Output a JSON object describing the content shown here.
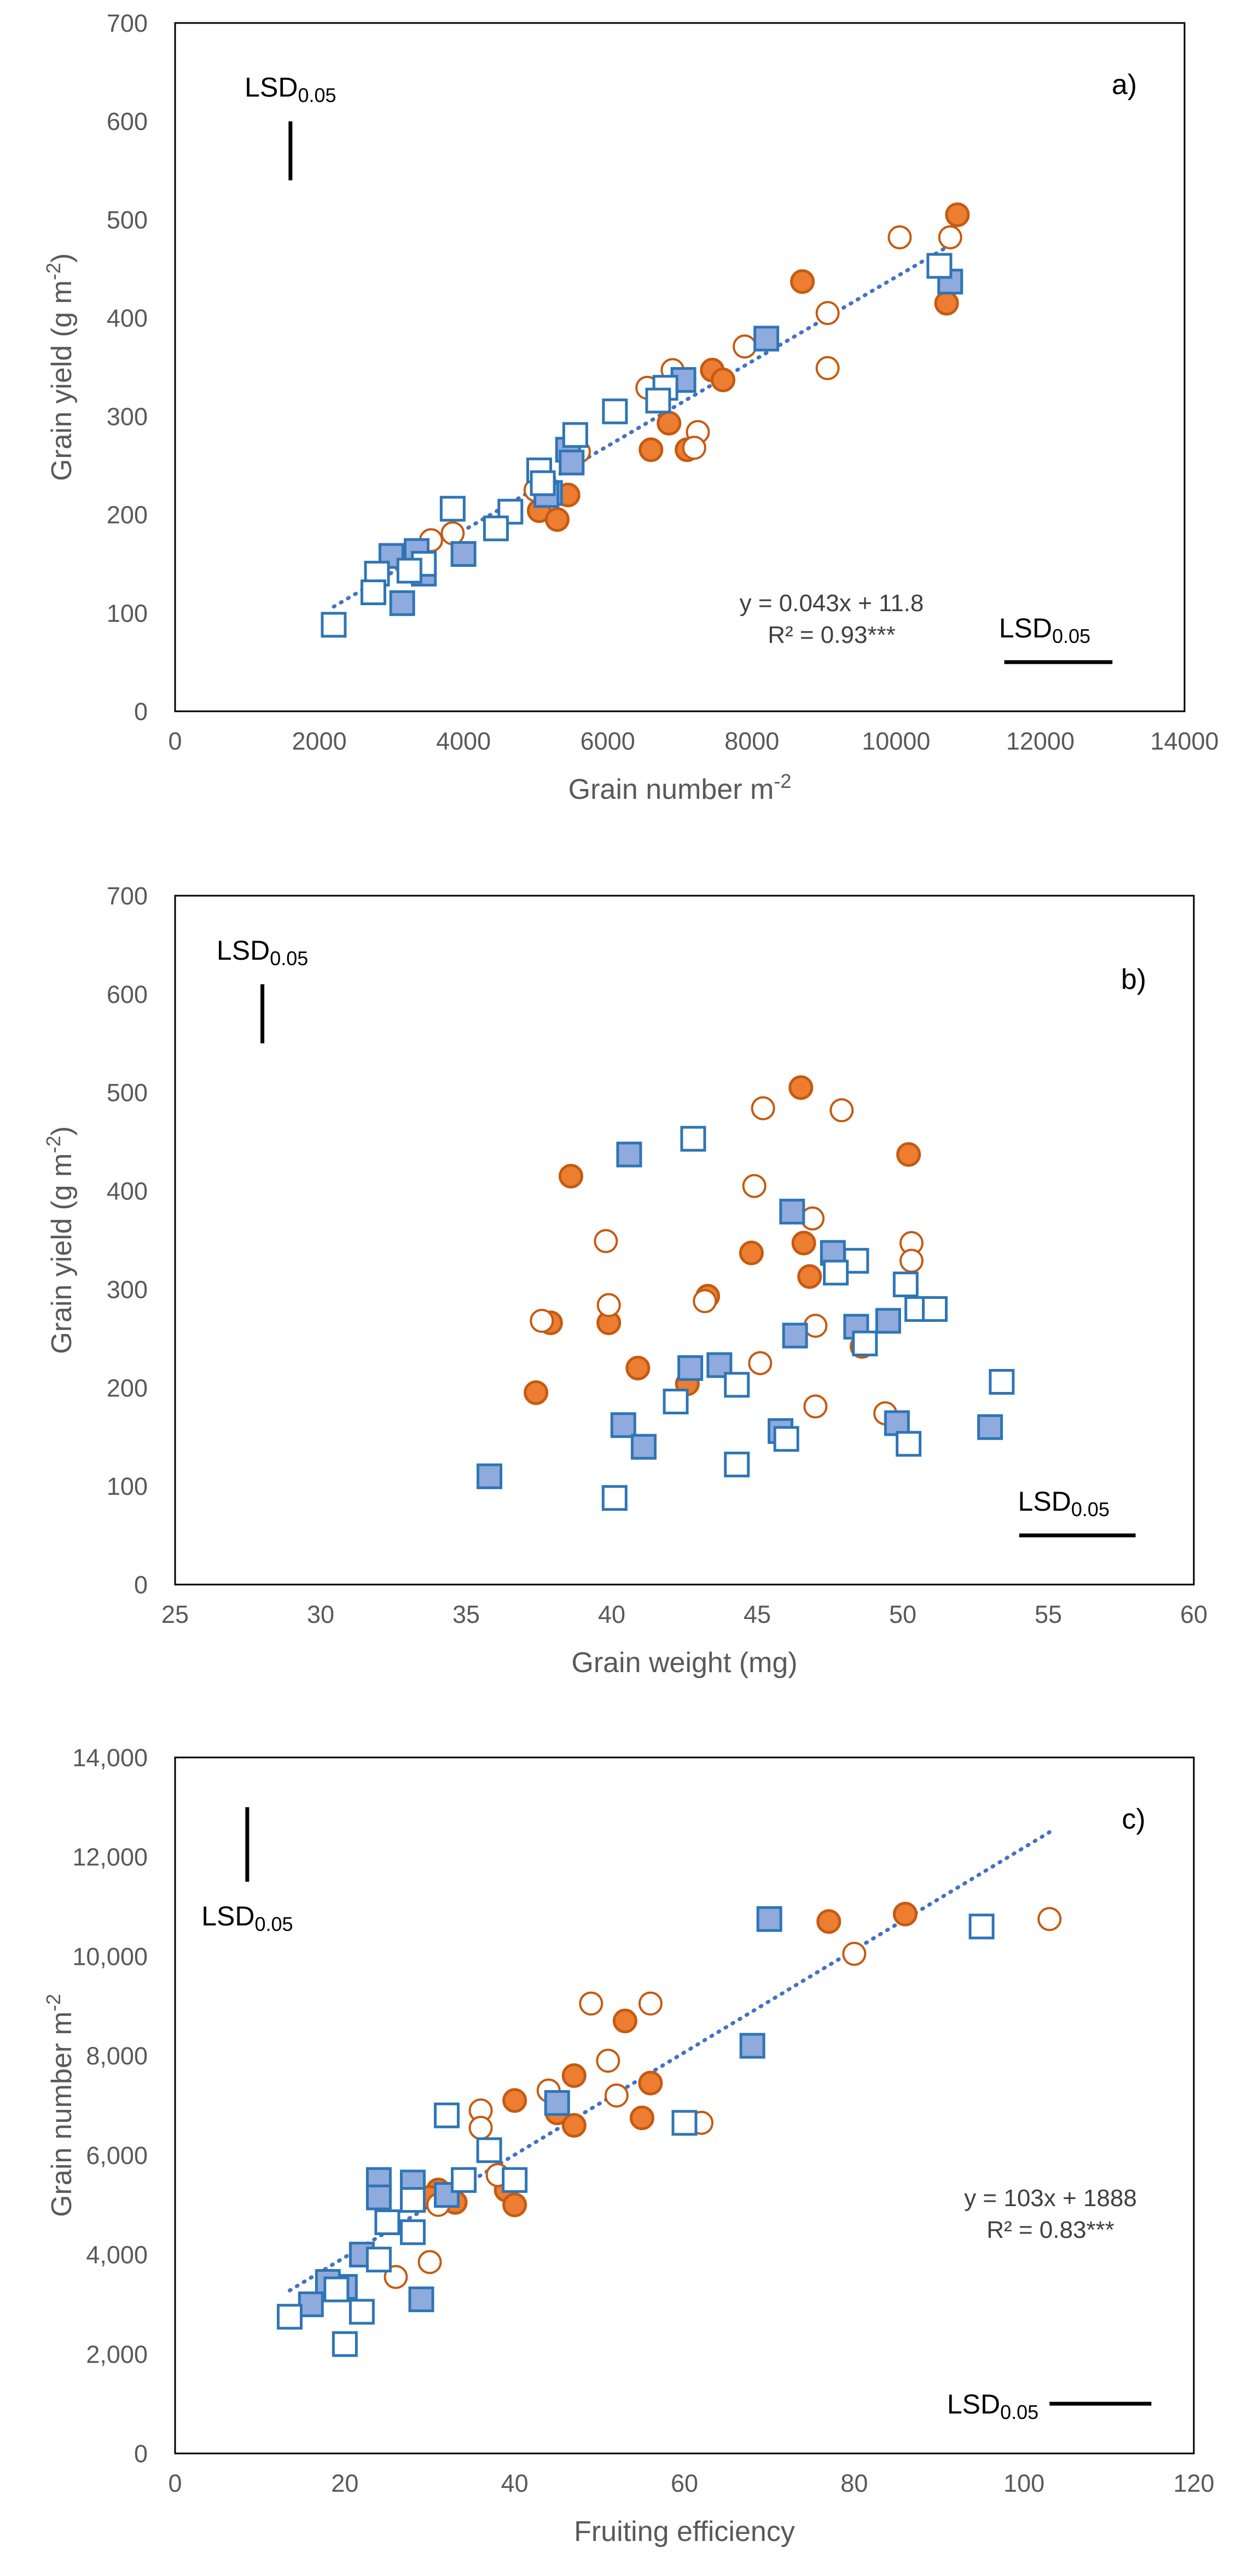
{
  "colors": {
    "circle_stroke": "#C55A11",
    "circle_fill": "#ED7D31",
    "square_stroke": "#2E75B6",
    "square_fill": "#8FAADC",
    "trend": "#4472C4",
    "frame": "#000000",
    "tick_text": "#595959"
  },
  "chart_data": [
    {
      "panel": "a)",
      "type": "scatter",
      "xlabel": "Grain number m",
      "xlabel_sup": "-2",
      "ylabel": "Grain yield (g m",
      "ylabel_sup": "-2",
      "ylabel_end": ")",
      "xlim": [
        0,
        14000
      ],
      "ylim": [
        0,
        700
      ],
      "xticks": [
        "0",
        "2000",
        "4000",
        "6000",
        "8000",
        "10000",
        "12000",
        "14000"
      ],
      "yticks": [
        "0",
        "100",
        "200",
        "300",
        "400",
        "500",
        "600",
        "700"
      ],
      "xtick_values": [
        0,
        2000,
        4000,
        6000,
        8000,
        10000,
        12000,
        14000
      ],
      "ytick_values": [
        0,
        100,
        200,
        300,
        400,
        500,
        600,
        700
      ],
      "lsd_vertical": {
        "label": "LSD",
        "sub": "0.05",
        "x": 1600,
        "y1": 540,
        "y2": 600
      },
      "lsd_horizontal": {
        "label": "LSD",
        "sub": "0.05",
        "x1": 11500,
        "x2": 13000,
        "y": 50
      },
      "trend": {
        "x": [
          2200,
          10800
        ],
        "y": [
          106.4,
          476.2
        ]
      },
      "equation": "y = 0.043x + 11.8",
      "r2": "R² = 0.93***",
      "series": [
        {
          "marker": "circle",
          "filled": true,
          "points": [
            [
              10850,
              505
            ],
            [
              8700,
              437
            ],
            [
              10700,
              415
            ],
            [
              7450,
              347
            ],
            [
              7600,
              337
            ],
            [
              6850,
              293
            ],
            [
              7100,
              266
            ],
            [
              6600,
              266
            ],
            [
              5050,
              204
            ],
            [
              5300,
              195
            ],
            [
              5450,
              220
            ],
            [
              5200,
              225
            ]
          ]
        },
        {
          "marker": "circle",
          "filled": false,
          "points": [
            [
              10050,
              482
            ],
            [
              10750,
              482
            ],
            [
              9050,
              405
            ],
            [
              9050,
              349
            ],
            [
              7900,
              371
            ],
            [
              6900,
              347
            ],
            [
              6550,
              329
            ],
            [
              7250,
              284
            ],
            [
              7200,
              268
            ],
            [
              5600,
              264
            ],
            [
              5000,
              225
            ],
            [
              3850,
              181
            ],
            [
              3550,
              174
            ],
            [
              3200,
              150
            ]
          ]
        },
        {
          "marker": "square",
          "filled": true,
          "points": [
            [
              10750,
              437
            ],
            [
              8200,
              379
            ],
            [
              7050,
              337
            ],
            [
              5450,
              266
            ],
            [
              5500,
              253
            ],
            [
              5200,
              222
            ],
            [
              5150,
              220
            ],
            [
              3350,
              163
            ],
            [
              3000,
              158
            ],
            [
              4000,
              160
            ],
            [
              3450,
              140
            ],
            [
              3150,
              110
            ]
          ]
        },
        {
          "marker": "square",
          "filled": false,
          "points": [
            [
              10600,
              453
            ],
            [
              6800,
              329
            ],
            [
              6700,
              316
            ],
            [
              6100,
              305
            ],
            [
              5550,
              281
            ],
            [
              5050,
              245
            ],
            [
              5100,
              232
            ],
            [
              4650,
              203
            ],
            [
              4450,
              186
            ],
            [
              3850,
              206
            ],
            [
              3450,
              150
            ],
            [
              3250,
              143
            ],
            [
              2800,
              140
            ],
            [
              2750,
              121
            ],
            [
              2200,
              88
            ]
          ]
        }
      ]
    },
    {
      "panel": "b)",
      "type": "scatter",
      "xlabel": "Grain weight (mg)",
      "ylabel": "Grain yield (g m",
      "ylabel_sup": "-2",
      "ylabel_end": ")",
      "xlim": [
        25,
        60
      ],
      "ylim": [
        0,
        700
      ],
      "xticks": [
        "25",
        "30",
        "35",
        "40",
        "45",
        "50",
        "55",
        "60"
      ],
      "yticks": [
        "0",
        "100",
        "200",
        "300",
        "400",
        "500",
        "600",
        "700"
      ],
      "xtick_values": [
        25,
        30,
        35,
        40,
        45,
        50,
        55,
        60
      ],
      "ytick_values": [
        0,
        100,
        200,
        300,
        400,
        500,
        600,
        700
      ],
      "lsd_vertical": {
        "label": "LSD",
        "sub": "0.05",
        "x": 28,
        "y1": 550,
        "y2": 610
      },
      "lsd_horizontal": {
        "label": "LSD",
        "sub": "0.05",
        "x1": 54,
        "x2": 58,
        "y": 50
      },
      "series": [
        {
          "marker": "circle",
          "filled": true,
          "points": [
            [
              46.5,
              505
            ],
            [
              50.2,
              437
            ],
            [
              38.6,
              415
            ],
            [
              44.8,
              337
            ],
            [
              46.6,
              347
            ],
            [
              46.8,
              313
            ],
            [
              43.3,
              293
            ],
            [
              37.9,
              266
            ],
            [
              39.9,
              266
            ],
            [
              40.9,
              220
            ],
            [
              42.6,
              204
            ],
            [
              48.6,
              242
            ],
            [
              37.4,
              195
            ]
          ]
        },
        {
          "marker": "circle",
          "filled": false,
          "points": [
            [
              45.2,
              484
            ],
            [
              47.9,
              482
            ],
            [
              44.9,
              405
            ],
            [
              39.8,
              349
            ],
            [
              46.9,
              372
            ],
            [
              50.3,
              347
            ],
            [
              50.3,
              329
            ],
            [
              39.9,
              284
            ],
            [
              43.2,
              288
            ],
            [
              37.6,
              268
            ],
            [
              47.0,
              263
            ],
            [
              45.1,
              225
            ],
            [
              47.0,
              181
            ],
            [
              49.4,
              174
            ]
          ]
        },
        {
          "marker": "square",
          "filled": true,
          "points": [
            [
              40.6,
              437
            ],
            [
              46.2,
              379
            ],
            [
              47.6,
              337
            ],
            [
              49.5,
              268
            ],
            [
              48.4,
              262
            ],
            [
              46.3,
              253
            ],
            [
              43.7,
              223
            ],
            [
              42.7,
              220
            ],
            [
              40.4,
              162
            ],
            [
              41.1,
              140
            ],
            [
              45.8,
              156
            ],
            [
              49.8,
              164
            ],
            [
              53.0,
              160
            ],
            [
              35.8,
              110
            ]
          ]
        },
        {
          "marker": "square",
          "filled": false,
          "points": [
            [
              42.8,
              453
            ],
            [
              48.4,
              329
            ],
            [
              47.7,
              317
            ],
            [
              50.1,
              305
            ],
            [
              50.5,
              280
            ],
            [
              51.1,
              280
            ],
            [
              48.7,
              245
            ],
            [
              42.2,
              186
            ],
            [
              44.3,
              203
            ],
            [
              53.4,
              206
            ],
            [
              46.0,
              148
            ],
            [
              50.2,
              143
            ],
            [
              44.3,
              122
            ],
            [
              40.1,
              88
            ]
          ]
        }
      ]
    },
    {
      "panel": "c)",
      "type": "scatter",
      "xlabel": "Fruiting efficiency",
      "ylabel": "Grain number m",
      "ylabel_sup": "-2",
      "ylabel_end": "",
      "xlim": [
        0,
        120
      ],
      "ylim": [
        0,
        14000
      ],
      "xticks": [
        "0",
        "20",
        "40",
        "60",
        "80",
        "100",
        "120"
      ],
      "yticks": [
        "0",
        "2,000",
        "4,000",
        "6,000",
        "8,000",
        "10,000",
        "12,000",
        "14,000"
      ],
      "xtick_values": [
        0,
        20,
        40,
        60,
        80,
        100,
        120
      ],
      "ytick_values": [
        0,
        2000,
        4000,
        6000,
        8000,
        10000,
        12000,
        14000
      ],
      "lsd_vertical": {
        "label": "LSD",
        "sub": "0.05",
        "x": 8.5,
        "y1": 11500,
        "y2": 13000
      },
      "lsd_horizontal": {
        "label": "LSD",
        "sub": "0.05",
        "x1": 103,
        "x2": 115,
        "y": 1000
      },
      "trend": {
        "x": [
          13.5,
          103
        ],
        "y": [
          3278,
          12497
        ]
      },
      "equation": "y = 103x + 1888",
      "r2": "R² = 0.83***",
      "series": [
        {
          "marker": "circle",
          "filled": true,
          "points": [
            [
              86,
              10850
            ],
            [
              77,
              10700
            ],
            [
              53,
              8700
            ],
            [
              56,
              7450
            ],
            [
              47,
              7600
            ],
            [
              40,
              7100
            ],
            [
              45,
              6850
            ],
            [
              55,
              6750
            ],
            [
              47,
              6600
            ],
            [
              31,
              5300
            ],
            [
              33,
              5050
            ],
            [
              30,
              5150
            ],
            [
              39,
              5300
            ],
            [
              40,
              5000
            ]
          ]
        },
        {
          "marker": "circle",
          "filled": false,
          "points": [
            [
              103,
              10750
            ],
            [
              80,
              10050
            ],
            [
              49,
              9050
            ],
            [
              56,
              9050
            ],
            [
              51,
              7900
            ],
            [
              44,
              7300
            ],
            [
              52,
              7200
            ],
            [
              36,
              6900
            ],
            [
              36,
              6550
            ],
            [
              62,
              6650
            ],
            [
              38,
              5600
            ],
            [
              31,
              5000
            ],
            [
              26,
              3550
            ],
            [
              30,
              3850
            ]
          ]
        },
        {
          "marker": "square",
          "filled": true,
          "points": [
            [
              70,
              10750
            ],
            [
              68,
              8200
            ],
            [
              45,
              7050
            ],
            [
              24,
              5500
            ],
            [
              28,
              5450
            ],
            [
              24,
              5150
            ],
            [
              32,
              5200
            ],
            [
              22,
              4000
            ],
            [
              20,
              3350
            ],
            [
              18,
              3450
            ],
            [
              16,
              3000
            ],
            [
              29,
              3100
            ]
          ]
        },
        {
          "marker": "square",
          "filled": false,
          "points": [
            [
              95,
              10600
            ],
            [
              60,
              6650
            ],
            [
              32,
              6800
            ],
            [
              37,
              6100
            ],
            [
              34,
              5500
            ],
            [
              40,
              5500
            ],
            [
              28,
              5100
            ],
            [
              25,
              4650
            ],
            [
              28,
              4450
            ],
            [
              24,
              3900
            ],
            [
              19,
              3300
            ],
            [
              13.5,
              2750
            ],
            [
              22,
              2850
            ],
            [
              20,
              2200
            ]
          ]
        }
      ]
    }
  ]
}
